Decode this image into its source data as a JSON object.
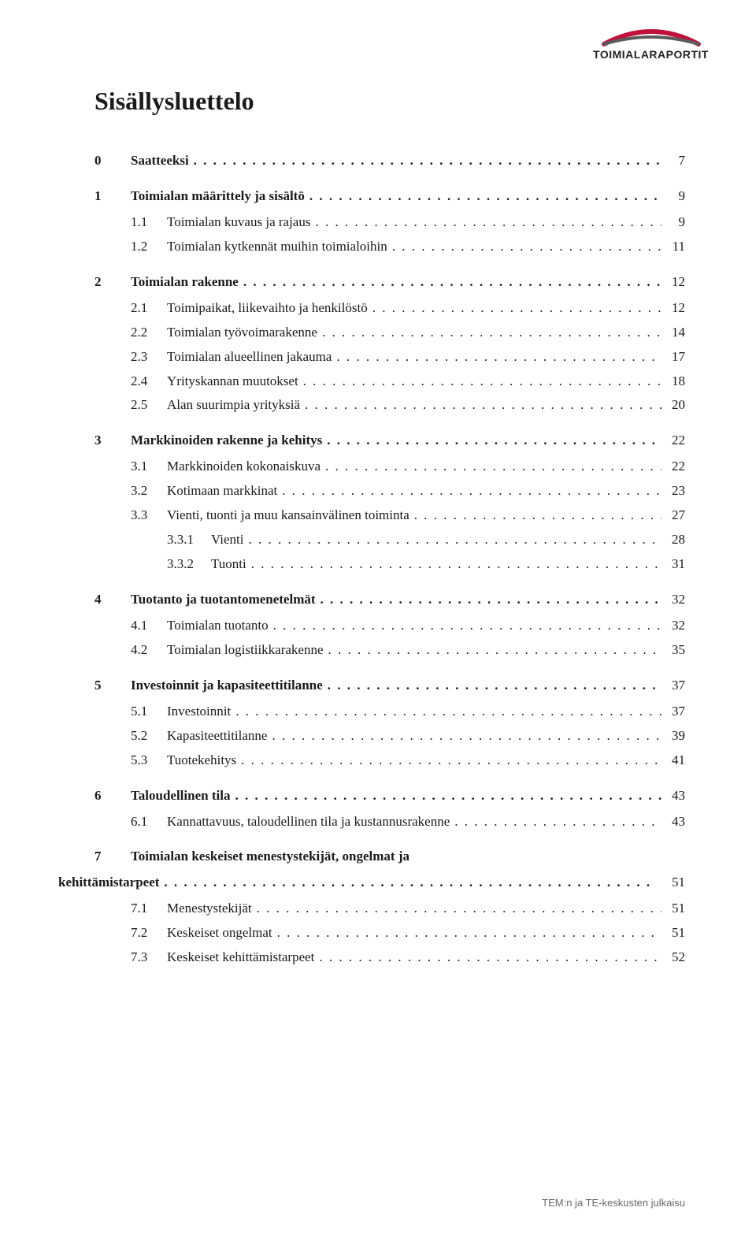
{
  "logo": {
    "text": "TOIMIALARAPORTIT",
    "arc_top_color": "#c0113a",
    "arc_bottom_color": "#5c5c5c"
  },
  "title": "Sisällysluettelo",
  "toc": [
    {
      "level": "chapter",
      "num": "0",
      "label": "Saatteeksi",
      "page": "7",
      "first": true
    },
    {
      "level": "chapter",
      "num": "1",
      "label": "Toimialan määrittely ja sisältö",
      "page": "9"
    },
    {
      "level": "sub",
      "num": "1.1",
      "label": "Toimialan kuvaus ja rajaus",
      "page": "9"
    },
    {
      "level": "sub",
      "num": "1.2",
      "label": "Toimialan kytkennät muihin toimialoihin",
      "page": "11"
    },
    {
      "level": "chapter",
      "num": "2",
      "label": "Toimialan rakenne",
      "page": "12"
    },
    {
      "level": "sub",
      "num": "2.1",
      "label": "Toimipaikat, liikevaihto ja henkilöstö",
      "page": "12"
    },
    {
      "level": "sub",
      "num": "2.2",
      "label": "Toimialan työvoimarakenne",
      "page": "14"
    },
    {
      "level": "sub",
      "num": "2.3",
      "label": "Toimialan alueellinen jakauma",
      "page": "17"
    },
    {
      "level": "sub",
      "num": "2.4",
      "label": "Yrityskannan muutokset",
      "page": "18"
    },
    {
      "level": "sub",
      "num": "2.5",
      "label": "Alan suurimpia yrityksiä",
      "page": "20"
    },
    {
      "level": "chapter",
      "num": "3",
      "label": "Markkinoiden rakenne ja kehitys",
      "page": "22"
    },
    {
      "level": "sub",
      "num": "3.1",
      "label": "Markkinoiden kokonaiskuva",
      "page": "22"
    },
    {
      "level": "sub",
      "num": "3.2",
      "label": "Kotimaan markkinat",
      "page": "23"
    },
    {
      "level": "sub",
      "num": "3.3",
      "label": "Vienti, tuonti ja muu kansainvälinen toiminta",
      "page": "27"
    },
    {
      "level": "subsub",
      "num": "3.3.1",
      "label": "Vienti",
      "page": "28"
    },
    {
      "level": "subsub",
      "num": "3.3.2",
      "label": "Tuonti",
      "page": "31"
    },
    {
      "level": "chapter",
      "num": "4",
      "label": "Tuotanto ja tuotantomenetelmät",
      "page": "32"
    },
    {
      "level": "sub",
      "num": "4.1",
      "label": "Toimialan tuotanto",
      "page": "32"
    },
    {
      "level": "sub",
      "num": "4.2",
      "label": "Toimialan logistiikkarakenne",
      "page": "35"
    },
    {
      "level": "chapter",
      "num": "5",
      "label": "Investoinnit ja kapasiteettitilanne",
      "page": "37"
    },
    {
      "level": "sub",
      "num": "5.1",
      "label": "Investoinnit",
      "page": "37"
    },
    {
      "level": "sub",
      "num": "5.2",
      "label": "Kapasiteettitilanne",
      "page": "39"
    },
    {
      "level": "sub",
      "num": "5.3",
      "label": "Tuotekehitys",
      "page": "41"
    },
    {
      "level": "chapter",
      "num": "6",
      "label": "Taloudellinen tila",
      "page": "43"
    },
    {
      "level": "sub",
      "num": "6.1",
      "label": "Kannattavuus, taloudellinen tila ja kustannusrakenne",
      "page": "43"
    },
    {
      "level": "chapter-multi",
      "num": "7",
      "label1": "Toimialan keskeiset menestystekijät, ongelmat ja",
      "label2": "kehittämistarpeet",
      "page": "51"
    },
    {
      "level": "sub",
      "num": "7.1",
      "label": "Menestystekijät",
      "page": "51"
    },
    {
      "level": "sub",
      "num": "7.2",
      "label": "Keskeiset ongelmat",
      "page": "51"
    },
    {
      "level": "sub",
      "num": "7.3",
      "label": "Keskeiset kehittämistarpeet",
      "page": "52"
    }
  ],
  "footer": "TEM:n ja TE-keskusten julkaisu",
  "colors": {
    "text": "#1a1a1a",
    "footer": "#6a6a6a",
    "background": "#ffffff"
  },
  "typography": {
    "title_fontsize": 32,
    "body_fontsize": 17,
    "footer_fontsize": 13
  }
}
